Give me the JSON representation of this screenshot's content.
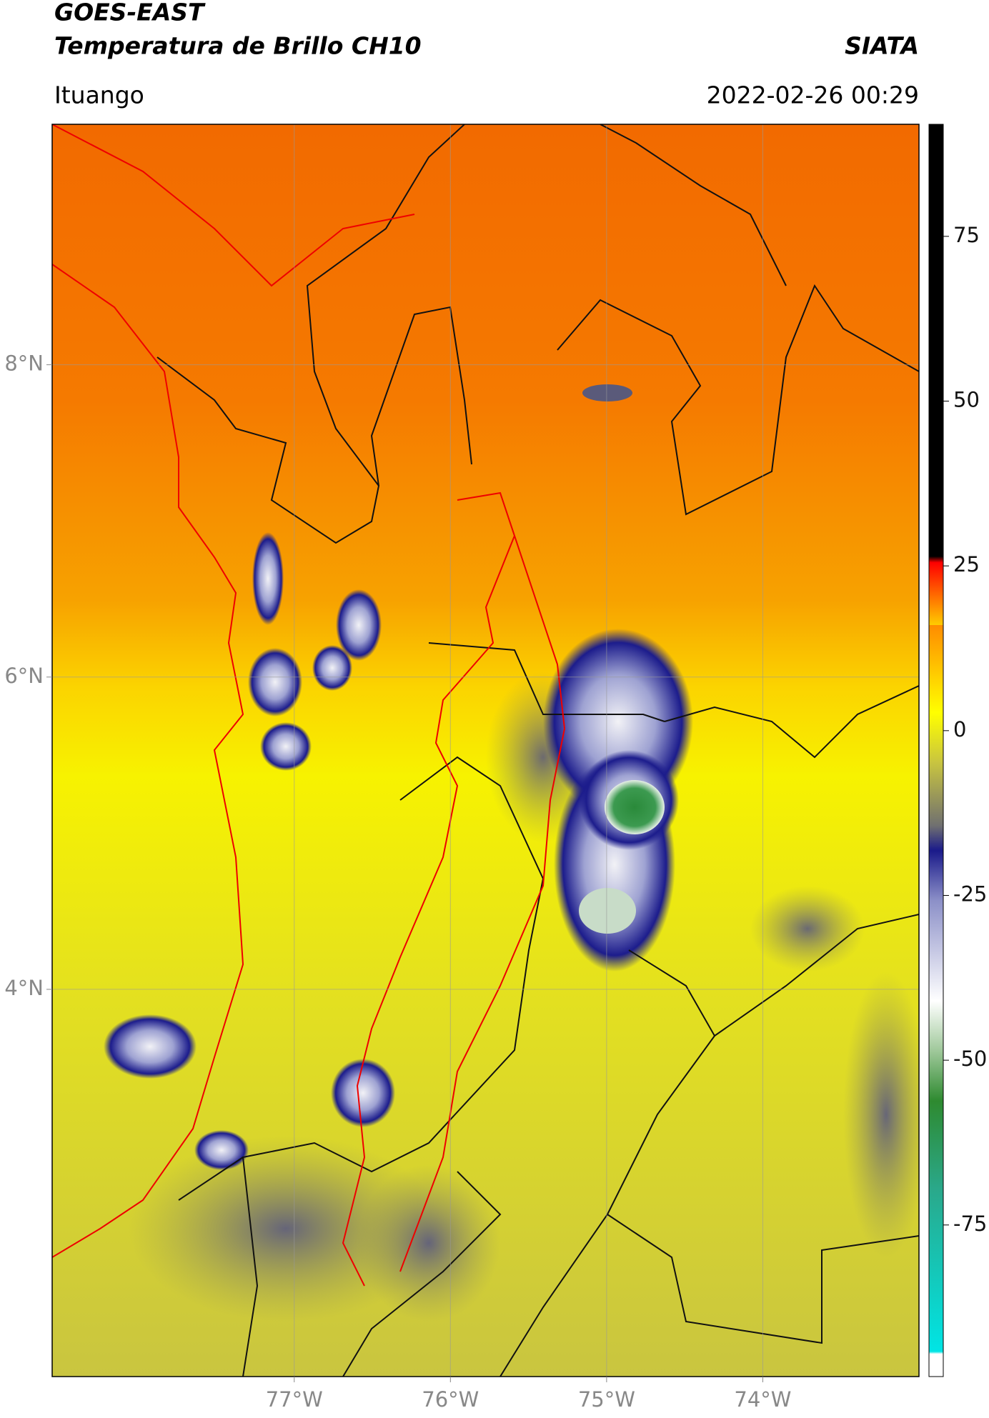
{
  "header": {
    "title": "GOES-EAST",
    "subtitle": "Temperatura de Brillo CH10",
    "organization": "SIATA",
    "location": "Ituango",
    "datetime": "2022-02-26 00:29"
  },
  "map": {
    "xlim": [
      -78.55,
      -73.0
    ],
    "ylim": [
      1.52,
      9.54
    ],
    "xticks": [
      {
        "value": -77,
        "label": "77°W"
      },
      {
        "value": -76,
        "label": "76°W"
      },
      {
        "value": -75,
        "label": "75°W"
      },
      {
        "value": -74,
        "label": "74°W"
      }
    ],
    "yticks": [
      {
        "value": 8,
        "label": "8°N"
      },
      {
        "value": 6,
        "label": "6°N"
      },
      {
        "value": 4,
        "label": "4°N"
      }
    ]
  },
  "colorbar": {
    "lim": [
      -98,
      92
    ],
    "ticks": [
      75,
      50,
      25,
      0,
      -25,
      -50,
      -75
    ]
  }
}
